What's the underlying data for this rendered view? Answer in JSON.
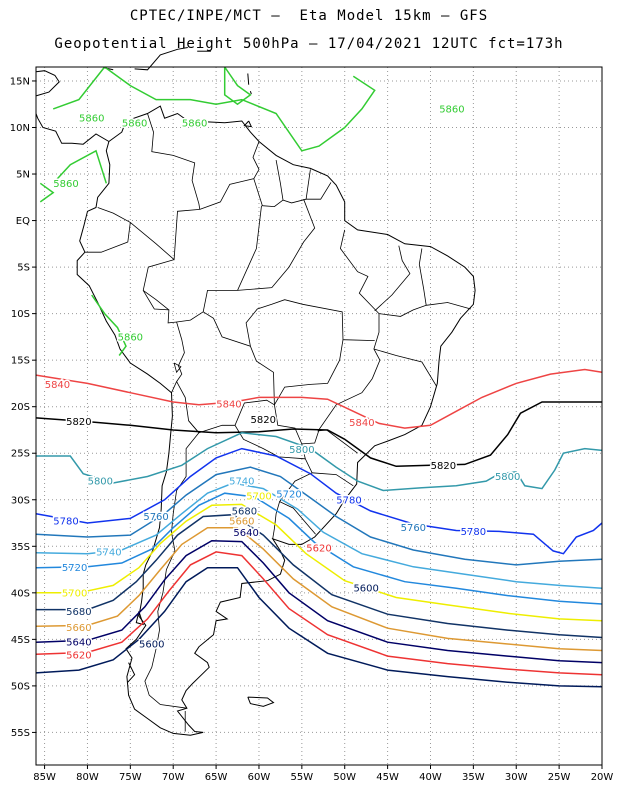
{
  "header": {
    "line1": "CPTEC/INPE/MCT –  Eta Model 15km – GFS",
    "line2": "Geopotential Height 500hPa – 17/04/2021 12UTC fct=173h"
  },
  "axes": {
    "lat_labels": [
      "15N",
      "10N",
      "5N",
      "EQ",
      "5S",
      "10S",
      "15S",
      "20S",
      "25S",
      "30S",
      "35S",
      "40S",
      "45S",
      "50S",
      "55S"
    ],
    "lon_labels": [
      "85W",
      "80W",
      "75W",
      "70W",
      "65W",
      "60W",
      "55W",
      "50W",
      "45W",
      "40W",
      "35W",
      "30W",
      "25W",
      "20W"
    ]
  },
  "map": {
    "domain": {
      "lon": [
        -86,
        -20
      ],
      "lat": [
        -58.5,
        16.5
      ]
    },
    "projection": "lat-lon",
    "grid": "dotted",
    "coastline_color": "#000000",
    "contour_interval_m": 20
  },
  "contours": [
    {
      "value": 5860,
      "label": "5860",
      "color": "#33cc33"
    },
    {
      "value": 5840,
      "label": "5840",
      "color": "#ee4444"
    },
    {
      "value": 5820,
      "label": "5820",
      "color": "#000000"
    },
    {
      "value": 5800,
      "label": "5800",
      "color": "#3399aa"
    },
    {
      "value": 5780,
      "label": "5780",
      "color": "#1133ee"
    },
    {
      "value": 5760,
      "label": "5760",
      "color": "#2277bb"
    },
    {
      "value": 5740,
      "label": "5740",
      "color": "#44aadd"
    },
    {
      "value": 5720,
      "label": "5720",
      "color": "#2288dd"
    },
    {
      "value": 5700,
      "label": "5700",
      "color": "#eeee00"
    },
    {
      "value": 5680,
      "label": "5680",
      "color": "#113366"
    },
    {
      "value": 5660,
      "label": "5660",
      "color": "#dd9933"
    },
    {
      "value": 5640,
      "label": "5640",
      "color": "#000066"
    },
    {
      "value": 5620,
      "label": "5620",
      "color": "#ee3333"
    },
    {
      "value": 5600,
      "label": "5600",
      "color": "#001a5a"
    }
  ]
}
